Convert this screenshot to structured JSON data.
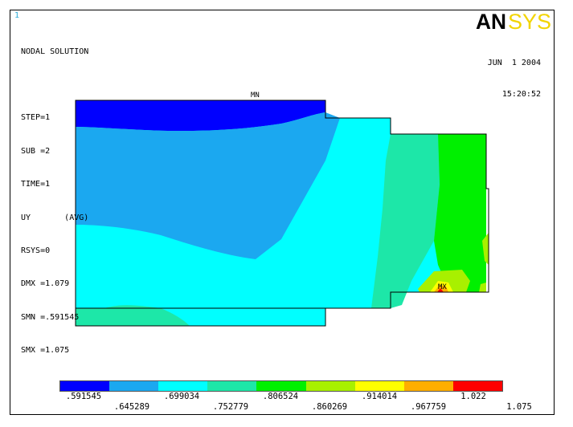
{
  "window_number": "1",
  "header": {
    "lines": [
      "NODAL SOLUTION",
      "",
      "STEP=1",
      "SUB =2",
      "TIME=1",
      "UY       (AVG)",
      "RSYS=0",
      "DMX =1.079",
      "SMN =.591545",
      "SMX =1.075"
    ]
  },
  "datetime": {
    "date": "JUN  1 2004",
    "time": "15:20:52"
  },
  "logo": {
    "text_an": "AN",
    "text_sys": "SYS",
    "colors": {
      "an": "#000000",
      "sys": "#f2d400"
    }
  },
  "markers": {
    "min": "MN",
    "max": "MX"
  },
  "legend": {
    "colors": [
      "#0000ff",
      "#1ba8f0",
      "#00ffff",
      "#1de7a8",
      "#00f000",
      "#a8f000",
      "#ffff00",
      "#ffae00",
      "#ff0000"
    ],
    "top_labels": [
      ".591545",
      ".699034",
      ".806524",
      ".914014",
      "1.022"
    ],
    "bottom_labels": [
      ".645289",
      ".752779",
      ".860269",
      ".967759",
      "1.075"
    ]
  }
}
